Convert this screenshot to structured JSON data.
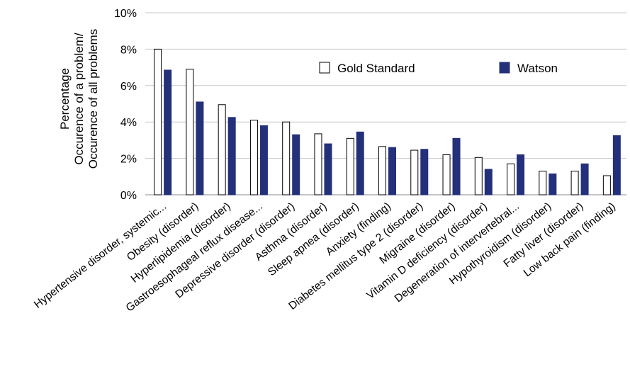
{
  "chart_data": {
    "type": "bar",
    "ylabel_lines": [
      "Percentage",
      "Occurence of a problem/",
      "Occurence of all problems"
    ],
    "ylim": [
      0,
      10
    ],
    "y_ticks": [
      "0%",
      "2%",
      "4%",
      "6%",
      "8%",
      "10%"
    ],
    "grid": true,
    "legend_position": "top-right",
    "categories": [
      "Hypertensive disorder, systemic...",
      "Obesity (disorder)",
      "Hyperlipidemia (disorder)",
      "Gastroesophageal reflux disease...",
      "Depressive disorder (disorder)",
      "Asthma (disorder)",
      "Sleep apnea (disorder)",
      "Anxiety (finding)",
      "Diabetes mellitus type 2 (disorder)",
      "Migraine (disorder)",
      "Vitamin D deficiency (disorder)",
      "Degeneration of intervertebral...",
      "Hypothyroidism (disorder)",
      "Fatty liver (disorder)",
      "Low back pain (finding)"
    ],
    "series": [
      {
        "name": "Gold Standard",
        "color": "#ffffff",
        "values": [
          8.0,
          6.9,
          4.95,
          4.1,
          4.0,
          3.35,
          3.1,
          2.65,
          2.45,
          2.2,
          2.05,
          1.7,
          1.3,
          1.3,
          1.05
        ]
      },
      {
        "name": "Watson",
        "color": "#25307a",
        "values": [
          6.85,
          5.1,
          4.25,
          3.8,
          3.3,
          2.8,
          3.45,
          2.6,
          2.5,
          3.1,
          1.4,
          2.2,
          1.15,
          1.7,
          3.25
        ]
      }
    ]
  }
}
